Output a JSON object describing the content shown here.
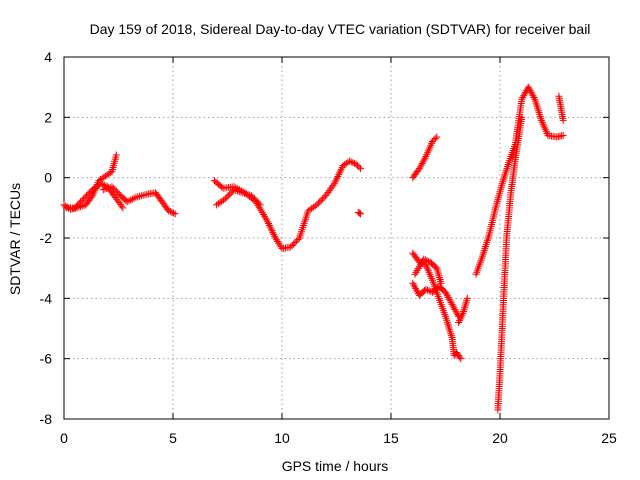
{
  "chart_data": {
    "type": "scatter",
    "title": "Day 159 of 2018, Sidereal Day-to-day VTEC variation (SDTVAR) for receiver bail",
    "xlabel": "GPS time / hours",
    "ylabel": "SDTVAR / TECUs",
    "xlim": [
      0,
      25
    ],
    "ylim": [
      -8,
      4
    ],
    "x_ticks": [
      0,
      5,
      10,
      15,
      20,
      25
    ],
    "y_ticks": [
      -8,
      -6,
      -4,
      -2,
      0,
      2,
      4
    ],
    "grid": true,
    "marker": "+",
    "series": [
      {
        "name": "SDTVAR",
        "color": "#ff0000",
        "segments": [
          {
            "x": [
              0,
              0.3,
              0.6,
              1.0,
              1.3,
              1.6,
              1.9,
              2.2,
              2.4
            ],
            "y": [
              -0.9,
              -1.05,
              -1.0,
              -0.9,
              -0.6,
              -0.1,
              0.05,
              0.2,
              0.75
            ]
          },
          {
            "x": [
              0.1,
              0.5,
              0.9,
              1.3,
              1.7,
              2.0,
              2.3,
              2.7
            ],
            "y": [
              -1.0,
              -1.0,
              -0.7,
              -0.4,
              -0.2,
              -0.3,
              -0.6,
              -1.0
            ]
          },
          {
            "x": [
              1.8,
              2.2,
              2.6,
              2.9,
              3.3,
              3.8,
              4.2,
              4.5,
              4.8,
              5.1
            ],
            "y": [
              -0.4,
              -0.3,
              -0.6,
              -0.8,
              -0.65,
              -0.55,
              -0.5,
              -0.8,
              -1.1,
              -1.2
            ]
          },
          {
            "x": [
              6.9,
              7.3,
              7.8,
              8.3,
              8.8,
              9.3,
              9.7,
              10.0,
              10.4,
              10.8,
              11.2,
              11.6,
              12.0,
              12.4,
              12.8,
              13.1,
              13.4,
              13.6
            ],
            "y": [
              -0.1,
              -0.35,
              -0.3,
              -0.5,
              -0.8,
              -1.4,
              -2.0,
              -2.35,
              -2.3,
              -2.0,
              -1.1,
              -0.9,
              -0.6,
              -0.2,
              0.4,
              0.55,
              0.45,
              0.3
            ]
          },
          {
            "x": [
              7.0,
              7.4,
              7.8,
              8.2,
              8.6,
              9.0
            ],
            "y": [
              -0.9,
              -0.7,
              -0.4,
              -0.5,
              -0.6,
              -0.9
            ]
          },
          {
            "x": [
              13.5,
              13.6
            ],
            "y": [
              -1.15,
              -1.2
            ]
          },
          {
            "x": [
              16.0,
              16.3,
              16.6,
              16.9,
              17.1
            ],
            "y": [
              0.0,
              0.3,
              0.7,
              1.2,
              1.35
            ]
          },
          {
            "x": [
              16.0,
              16.3,
              16.6,
              16.9,
              17.2,
              17.5,
              17.8,
              17.9,
              18.0
            ],
            "y": [
              -2.5,
              -2.8,
              -2.9,
              -3.4,
              -4.0,
              -4.6,
              -5.3,
              -5.9,
              -5.8
            ]
          },
          {
            "x": [
              16.0,
              16.3,
              16.6,
              16.9,
              17.2,
              17.5,
              17.8,
              18.1
            ],
            "y": [
              -3.5,
              -3.9,
              -3.7,
              -3.8,
              -3.6,
              -3.8,
              -4.2,
              -4.6
            ]
          },
          {
            "x": [
              16.1,
              16.5,
              16.8,
              17.1,
              17.3
            ],
            "y": [
              -3.2,
              -2.7,
              -2.8,
              -3.0,
              -3.5
            ]
          },
          {
            "x": [
              18.0,
              18.2
            ],
            "y": [
              -5.8,
              -6.0
            ]
          },
          {
            "x": [
              18.1,
              18.3,
              18.5
            ],
            "y": [
              -4.8,
              -4.5,
              -4.0
            ]
          },
          {
            "x": [
              18.9,
              19.2,
              19.5,
              19.8,
              20.1,
              20.4,
              20.7,
              21.0,
              21.3,
              21.6,
              21.9,
              22.2,
              22.6,
              22.9
            ],
            "y": [
              -3.2,
              -2.6,
              -1.9,
              -1.0,
              -0.2,
              0.5,
              1.1,
              2.6,
              3.0,
              2.6,
              1.9,
              1.4,
              1.35,
              1.4
            ]
          },
          {
            "x": [
              19.9,
              20.0,
              20.1,
              20.2,
              20.3,
              20.5,
              20.7,
              21.0
            ],
            "y": [
              -7.7,
              -6.5,
              -5.0,
              -3.5,
              -2.0,
              -0.5,
              0.6,
              2.0
            ]
          },
          {
            "x": [
              22.7,
              22.8,
              22.9
            ],
            "y": [
              2.7,
              2.3,
              1.9
            ]
          }
        ]
      }
    ]
  }
}
